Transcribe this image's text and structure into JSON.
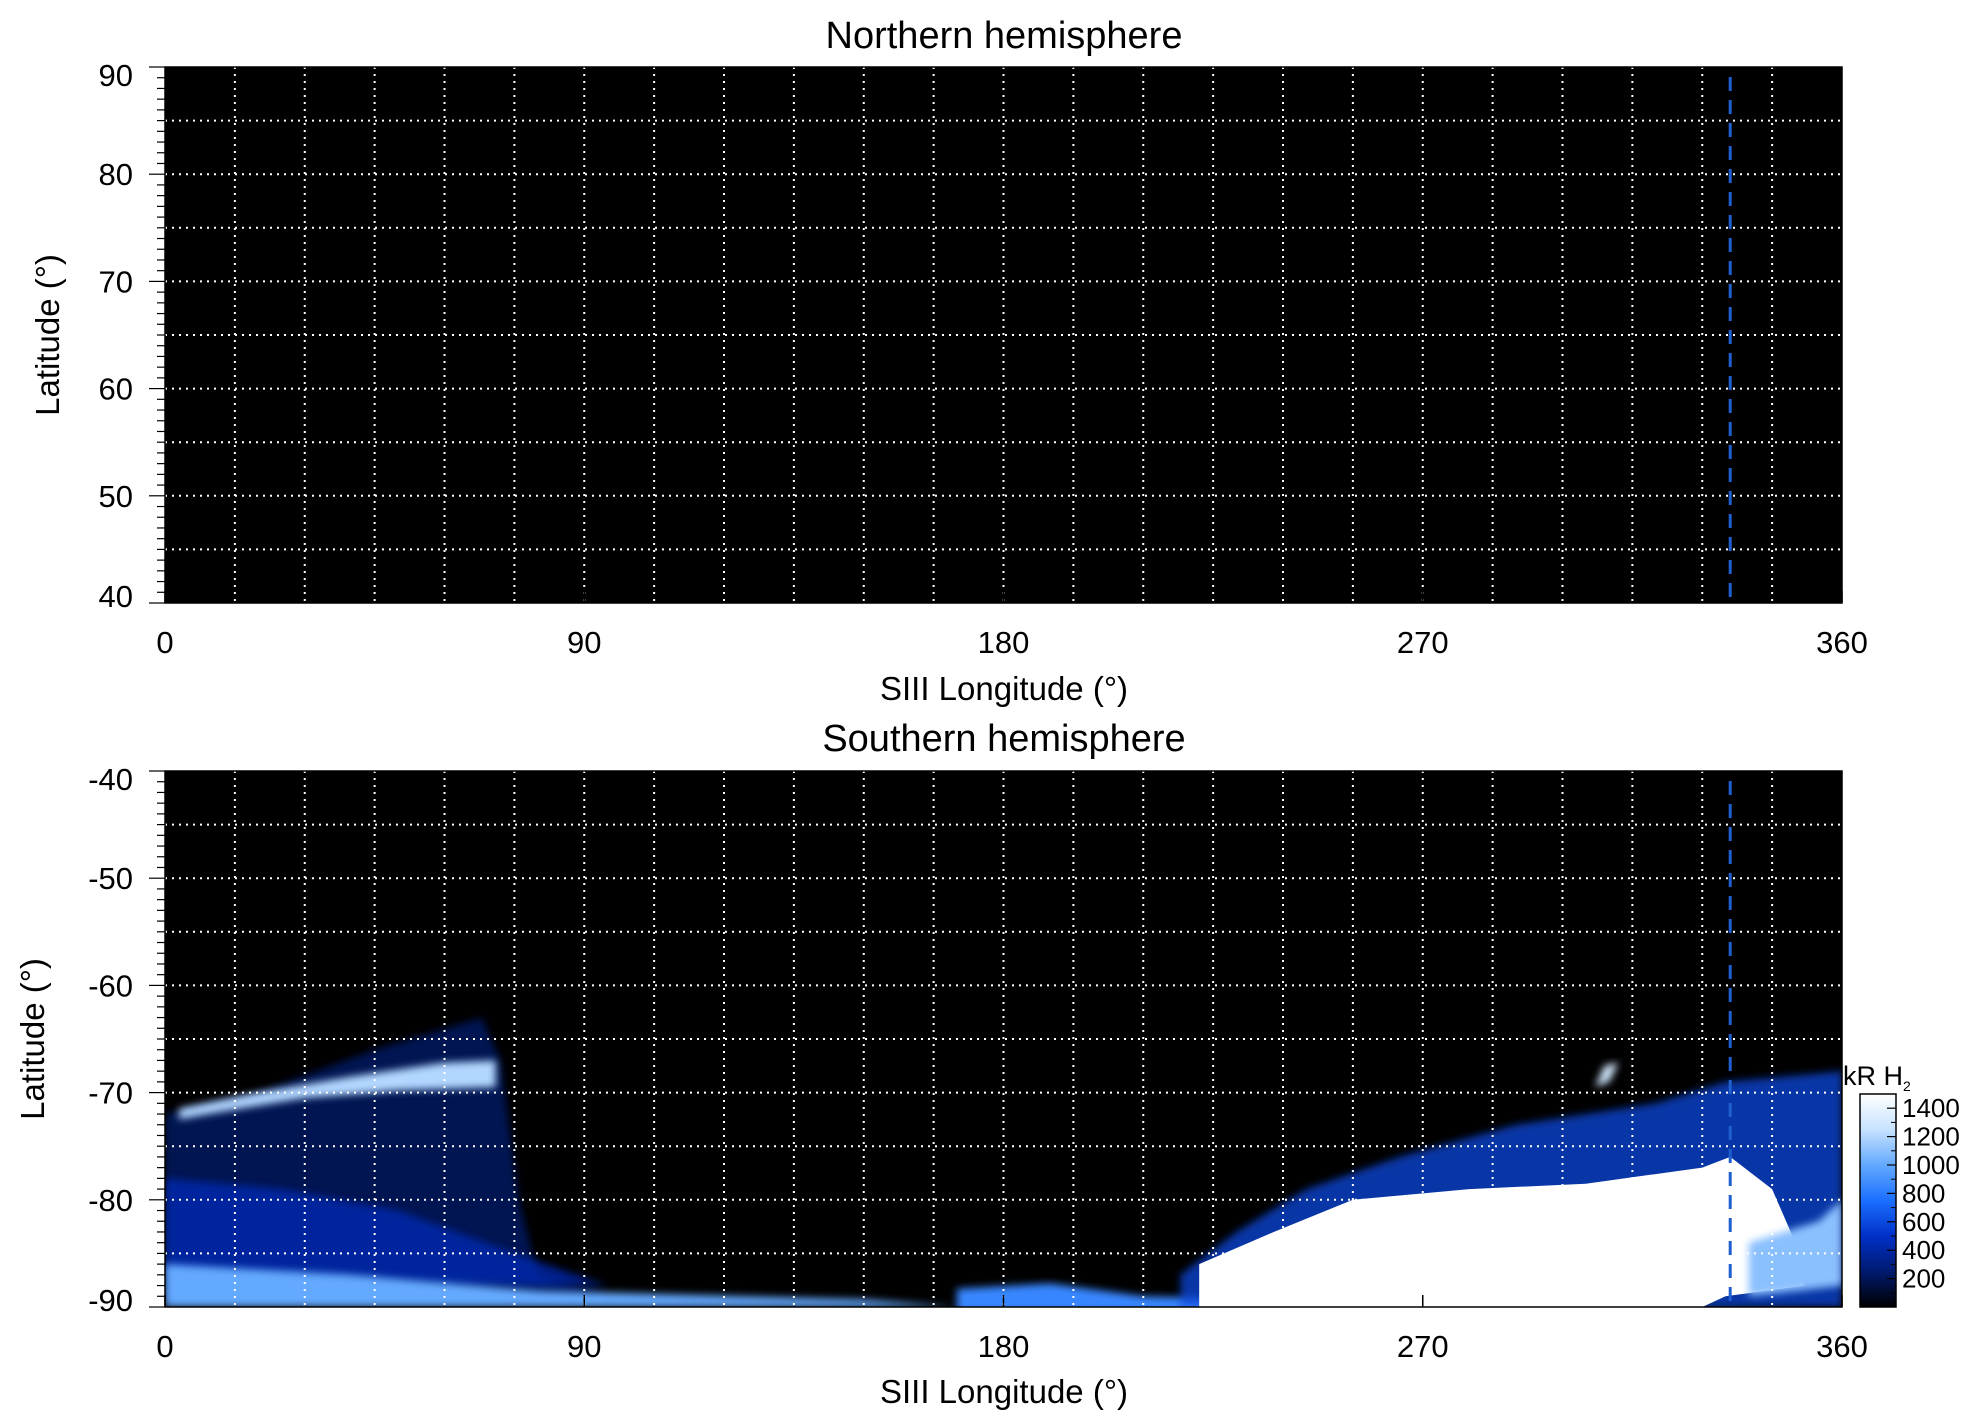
{
  "chart_data": [
    {
      "type": "heatmap",
      "title": "Northern hemisphere",
      "xlabel": "SIII Longitude (°)",
      "ylabel": "Latitude (°)",
      "xlim": [
        0,
        360
      ],
      "ylim": [
        40,
        90
      ],
      "x_ticks": [
        0,
        90,
        180,
        270,
        360
      ],
      "y_ticks": [
        40,
        50,
        60,
        70,
        80,
        90
      ],
      "x_gridlines_every": 15,
      "y_gridlines_every": 5,
      "grid": true,
      "grid_color": "#ffffff",
      "background_color": "#000000",
      "marker_longitude": 336,
      "marker_color": "#1f5fd0",
      "regions": []
    },
    {
      "type": "heatmap",
      "title": "Southern hemisphere",
      "xlabel": "SIII Longitude (°)",
      "ylabel": "Latitude (°)",
      "xlim": [
        0,
        360
      ],
      "ylim": [
        -90,
        -40
      ],
      "x_ticks": [
        0,
        90,
        180,
        270,
        360
      ],
      "y_ticks": [
        -90,
        -80,
        -70,
        -60,
        -50,
        -40
      ],
      "x_gridlines_every": 15,
      "y_gridlines_every": 5,
      "grid": true,
      "grid_color": "#ffffff",
      "background_color": "#000000",
      "marker_longitude": 336,
      "marker_color": "#1f5fd0",
      "colorbar": {
        "label": "kR H",
        "label_subscript": "2",
        "range": [
          0,
          1500
        ],
        "ticks": [
          200,
          400,
          600,
          800,
          1000,
          1200,
          1400
        ],
        "colors": [
          "#000000",
          "#001a6e",
          "#0030c8",
          "#1b6fff",
          "#63a9ff",
          "#c6e2ff",
          "#ffffff"
        ]
      },
      "regions": [
        {
          "kind": "diffuse",
          "intensity": 250,
          "points": [
            [
              0,
              -72
            ],
            [
              20,
              -70
            ],
            [
              45,
              -66
            ],
            [
              68,
              -63
            ],
            [
              72,
              -67
            ],
            [
              76,
              -80
            ],
            [
              80,
              -87
            ],
            [
              95,
              -89
            ],
            [
              0,
              -89
            ]
          ]
        },
        {
          "kind": "diffuse",
          "intensity": 450,
          "points": [
            [
              0,
              -78
            ],
            [
              25,
              -79
            ],
            [
              50,
              -81
            ],
            [
              75,
              -85
            ],
            [
              95,
              -88
            ],
            [
              60,
              -88
            ],
            [
              0,
              -87
            ]
          ]
        },
        {
          "kind": "arc",
          "intensity": 1200,
          "points": [
            [
              3,
              -71.5
            ],
            [
              20,
              -70
            ],
            [
              40,
              -68.5
            ],
            [
              60,
              -67.2
            ],
            [
              71,
              -67
            ],
            [
              71,
              -69.5
            ],
            [
              50,
              -69.8
            ],
            [
              30,
              -70.5
            ],
            [
              12,
              -71.8
            ],
            [
              3,
              -72.5
            ]
          ]
        },
        {
          "kind": "arc",
          "intensity": 1000,
          "points": [
            [
              0,
              -86
            ],
            [
              40,
              -87
            ],
            [
              80,
              -88.5
            ],
            [
              150,
              -89.3
            ],
            [
              170,
              -90
            ],
            [
              0,
              -90
            ]
          ]
        },
        {
          "kind": "arc",
          "intensity": 850,
          "points": [
            [
              170,
              -88.3
            ],
            [
              190,
              -87.8
            ],
            [
              210,
              -89
            ],
            [
              360,
              -90.5
            ],
            [
              170,
              -90.5
            ]
          ]
        },
        {
          "kind": "diffuse",
          "intensity": 600,
          "points": [
            [
              218,
              -87
            ],
            [
              230,
              -83
            ],
            [
              245,
              -79
            ],
            [
              265,
              -76
            ],
            [
              290,
              -73
            ],
            [
              320,
              -71
            ],
            [
              335,
              -69
            ],
            [
              360,
              -68
            ],
            [
              360,
              -90
            ],
            [
              218,
              -90
            ]
          ]
        },
        {
          "kind": "bright",
          "intensity": 1500,
          "points": [
            [
              222,
              -86
            ],
            [
              238,
              -83
            ],
            [
              255,
              -80
            ],
            [
              280,
              -79
            ],
            [
              305,
              -78.5
            ],
            [
              330,
              -77
            ],
            [
              336,
              -76
            ],
            [
              345,
              -79
            ],
            [
              350,
              -84
            ],
            [
              352,
              -88
            ],
            [
              335,
              -89
            ],
            [
              330,
              -90
            ],
            [
              222,
              -90
            ]
          ]
        },
        {
          "kind": "spot",
          "intensity": 1300,
          "points": [
            [
              309,
              -67.5
            ],
            [
              312,
              -67.2
            ],
            [
              310,
              -69
            ],
            [
              307,
              -69.5
            ]
          ]
        },
        {
          "kind": "patch",
          "intensity": 1100,
          "points": [
            [
              340,
              -84
            ],
            [
              355,
              -82
            ],
            [
              360,
              -80
            ],
            [
              360,
              -88
            ],
            [
              340,
              -89
            ]
          ]
        }
      ]
    }
  ]
}
